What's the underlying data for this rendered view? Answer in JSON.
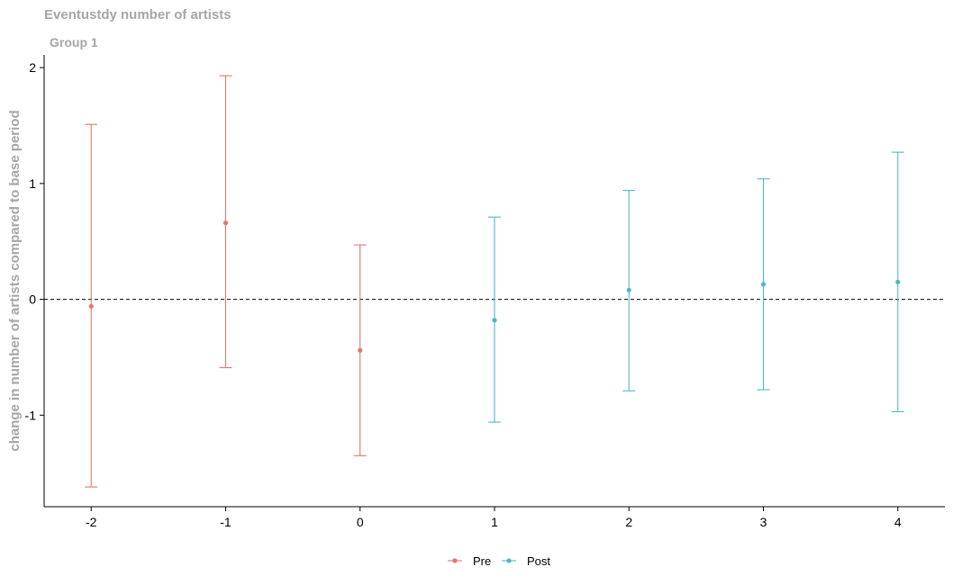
{
  "chart_data": {
    "type": "scatter",
    "title": "Eventustdy number of artists",
    "subtitle": "Group 1",
    "xlabel": "",
    "ylabel": "change in number of artists compared to base period",
    "x": [
      -2,
      -1,
      0,
      1,
      2,
      3,
      4
    ],
    "xticks": [
      "-2",
      "-1",
      "0",
      "1",
      "2",
      "3",
      "4"
    ],
    "yticks": [
      -1,
      0,
      1,
      2
    ],
    "ylim": [
      -1.79,
      2.11
    ],
    "reference_line": 0,
    "grid": false,
    "legend_position": "bottom",
    "series": [
      {
        "name": "Pre",
        "color": "#e2786d",
        "x": [
          -2,
          -1,
          0
        ],
        "estimate": [
          -0.06,
          0.66,
          -0.44
        ],
        "ci_low": [
          -1.62,
          -0.59,
          -1.35
        ],
        "ci_high": [
          1.51,
          1.93,
          0.47
        ]
      },
      {
        "name": "Post",
        "color": "#4fb9c2",
        "x": [
          1,
          2,
          3,
          4
        ],
        "estimate": [
          -0.18,
          0.08,
          0.13,
          0.15
        ],
        "ci_low": [
          -1.06,
          -0.79,
          -0.78,
          -0.97
        ],
        "ci_high": [
          0.71,
          0.94,
          1.04,
          1.27
        ]
      }
    ]
  }
}
